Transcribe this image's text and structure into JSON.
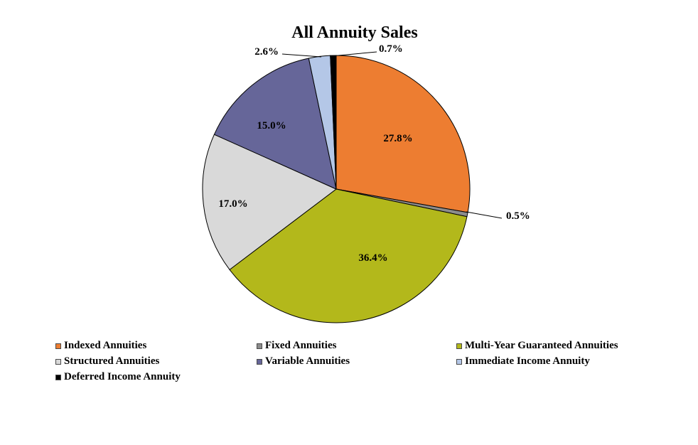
{
  "chart_data": {
    "type": "pie",
    "title": "All Annuity Sales",
    "slices": [
      {
        "name": "Indexed Annuities",
        "value": 27.8,
        "label": "27.8%",
        "color": "#ED7D31"
      },
      {
        "name": "Fixed Annuities",
        "value": 0.5,
        "label": "0.5%",
        "color": "#8C8C8C"
      },
      {
        "name": "Multi-Year Guaranteed Annuities",
        "value": 36.4,
        "label": "36.4%",
        "color": "#B3B81B"
      },
      {
        "name": "Structured Annuities",
        "value": 17.0,
        "label": "17.0%",
        "color": "#D9D9D9"
      },
      {
        "name": "Variable Annuities",
        "value": 15.0,
        "label": "15.0%",
        "color": "#666699"
      },
      {
        "name": "Immediate Income Annuity",
        "value": 2.6,
        "label": "2.6%",
        "color": "#B4C7E7"
      },
      {
        "name": "Deferred Income Annuity",
        "value": 0.7,
        "label": "0.7%",
        "color": "#000000"
      }
    ],
    "legend_position": "bottom"
  }
}
